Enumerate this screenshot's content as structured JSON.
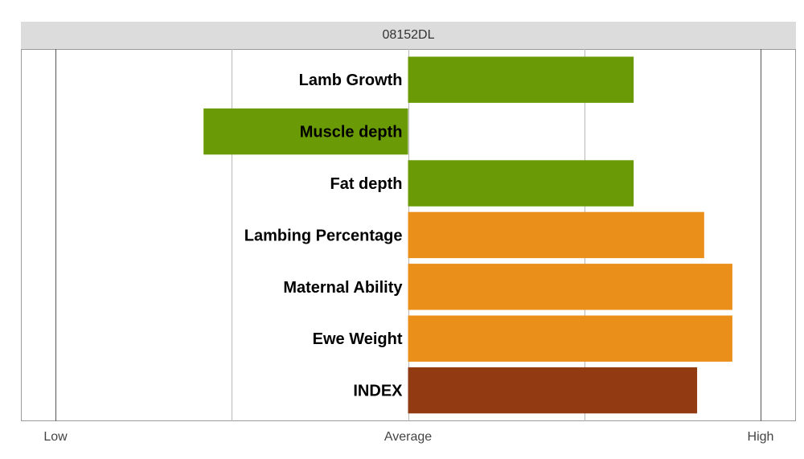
{
  "chart_data": {
    "type": "bar",
    "orientation": "horizontal",
    "title": "08152DL",
    "categories": [
      "Lamb Growth",
      "Muscle depth",
      "Fat depth",
      "Lambing Percentage",
      "Maternal Ability",
      "Ewe Weight",
      "INDEX"
    ],
    "values": [
      0.64,
      -0.58,
      0.64,
      0.84,
      0.92,
      0.92,
      0.82
    ],
    "bar_colors": [
      "#6a9a06",
      "#6a9a06",
      "#6a9a06",
      "#ea8f1a",
      "#ea8f1a",
      "#ea8f1a",
      "#923a12"
    ],
    "xlim": [
      -1,
      1
    ],
    "x_tick_values": [
      -1,
      0,
      1
    ],
    "x_tick_labels": [
      "Low",
      "Average",
      "High"
    ],
    "gridlines": [
      -1,
      -0.5,
      0,
      0.5,
      1
    ],
    "grid": true,
    "legend": "none"
  }
}
